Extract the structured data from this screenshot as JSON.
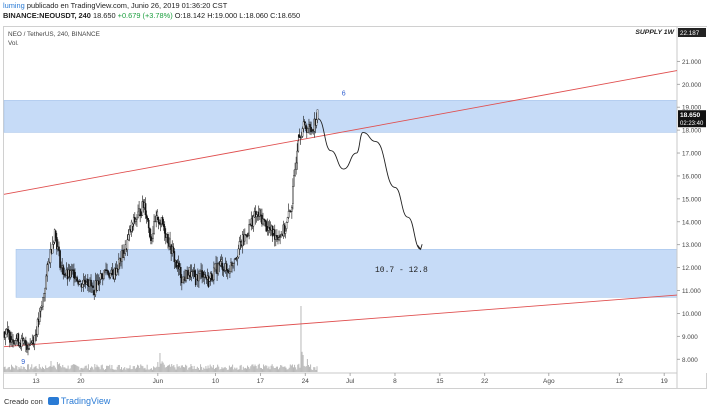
{
  "header": {
    "user": "luming",
    "published": "publicado en TradingView.com, Junio 26, 2019 01:36:20 CST",
    "symbol_line": "BINANCE:NEOUSDT, 240",
    "last_price": "18.650",
    "change": "+0.679 (+3.78%)",
    "ohlc": "O:18.142 H:19.000 L:18.060 C:18.650"
  },
  "legend": {
    "title": "NEO / TetherUS, 240, BINANCE",
    "volume_label": "Vol.",
    "supply_label": "SUPPLY 1W"
  },
  "chart_data": {
    "type": "candlestick",
    "symbol": "NEOUSDT",
    "exchange": "BINANCE",
    "timeframe": "240",
    "y_axis": {
      "ticks": [
        "8.000",
        "9.000",
        "10.000",
        "11.000",
        "12.000",
        "13.000",
        "14.000",
        "15.000",
        "16.000",
        "17.000",
        "18.000",
        "19.000",
        "20.000",
        "21.000"
      ],
      "top_label": "22.187",
      "current_price": "18.650",
      "countdown": "02:23:40",
      "range": [
        7.4,
        22.5
      ]
    },
    "x_axis": {
      "ticks": [
        "13",
        "20",
        "Jun",
        "10",
        "17",
        "24",
        "Jul",
        "8",
        "15",
        "22",
        "Ago",
        "12",
        "19"
      ],
      "tick_dates": [
        "2019-05-13",
        "2019-05-20",
        "2019-06-01",
        "2019-06-10",
        "2019-06-17",
        "2019-06-24",
        "2019-07-01",
        "2019-07-08",
        "2019-07-15",
        "2019-07-22",
        "2019-08-01",
        "2019-08-12",
        "2019-08-19"
      ]
    },
    "price_path": [
      [
        "2019-05-08",
        9.2
      ],
      [
        "2019-05-09",
        9.0
      ],
      [
        "2019-05-10",
        8.9
      ],
      [
        "2019-05-11",
        8.7
      ],
      [
        "2019-05-12",
        8.6
      ],
      [
        "2019-05-13",
        9.1
      ],
      [
        "2019-05-14",
        10.3
      ],
      [
        "2019-05-15",
        12.2
      ],
      [
        "2019-05-16",
        13.6
      ],
      [
        "2019-05-17",
        12.0
      ],
      [
        "2019-05-18",
        11.6
      ],
      [
        "2019-05-19",
        11.8
      ],
      [
        "2019-05-20",
        11.3
      ],
      [
        "2019-05-21",
        11.5
      ],
      [
        "2019-05-22",
        11.0
      ],
      [
        "2019-05-23",
        11.5
      ],
      [
        "2019-05-24",
        11.9
      ],
      [
        "2019-05-25",
        11.6
      ],
      [
        "2019-05-26",
        12.2
      ],
      [
        "2019-05-27",
        12.8
      ],
      [
        "2019-05-28",
        13.8
      ],
      [
        "2019-05-29",
        14.3
      ],
      [
        "2019-05-30",
        14.8
      ],
      [
        "2019-05-31",
        13.3
      ],
      [
        "2019-06-01",
        14.2
      ],
      [
        "2019-06-02",
        13.8
      ],
      [
        "2019-06-03",
        13.0
      ],
      [
        "2019-06-04",
        12.1
      ],
      [
        "2019-06-05",
        11.5
      ],
      [
        "2019-06-06",
        11.8
      ],
      [
        "2019-06-07",
        11.5
      ],
      [
        "2019-06-08",
        11.8
      ],
      [
        "2019-06-09",
        11.4
      ],
      [
        "2019-06-10",
        11.9
      ],
      [
        "2019-06-11",
        12.2
      ],
      [
        "2019-06-12",
        11.8
      ],
      [
        "2019-06-13",
        12.4
      ],
      [
        "2019-06-14",
        13.0
      ],
      [
        "2019-06-15",
        13.5
      ],
      [
        "2019-06-16",
        14.2
      ],
      [
        "2019-06-17",
        14.3
      ],
      [
        "2019-06-18",
        13.8
      ],
      [
        "2019-06-19",
        13.5
      ],
      [
        "2019-06-20",
        13.4
      ],
      [
        "2019-06-21",
        13.7
      ],
      [
        "2019-06-22",
        14.8
      ],
      [
        "2019-06-23",
        17.8
      ],
      [
        "2019-06-24",
        18.2
      ],
      [
        "2019-06-25",
        18.0
      ],
      [
        "2019-06-26",
        18.65
      ]
    ],
    "volume": [
      [
        "2019-05-15",
        0.55
      ],
      [
        "2019-05-16",
        0.5
      ],
      [
        "2019-05-28",
        0.3
      ],
      [
        "2019-06-01",
        0.95
      ],
      [
        "2019-06-16",
        0.3
      ],
      [
        "2019-06-23",
        3.3
      ],
      [
        "2019-06-24",
        0.65
      ]
    ],
    "zones": [
      {
        "price_from": 17.9,
        "price_to": 19.3,
        "from": "2019-05-08",
        "to": "2019-08-21"
      },
      {
        "price_from": 10.7,
        "price_to": 12.8,
        "from": "2019-05-08",
        "to": "2019-08-21"
      }
    ],
    "trendlines": [
      {
        "from": [
          "2019-05-08",
          15.2
        ],
        "to": [
          "2019-08-21",
          20.6
        ]
      },
      {
        "from": [
          "2019-05-08",
          8.55
        ],
        "to": [
          "2019-08-21",
          10.8
        ]
      }
    ],
    "forecast_path": [
      [
        "2019-06-26",
        18.5
      ],
      [
        "2019-06-28",
        17.1
      ],
      [
        "2019-06-30",
        16.3
      ],
      [
        "2019-07-02",
        17.0
      ],
      [
        "2019-07-03",
        17.9
      ],
      [
        "2019-07-05",
        17.5
      ],
      [
        "2019-07-08",
        15.5
      ],
      [
        "2019-07-10",
        14.2
      ],
      [
        "2019-07-12",
        12.8
      ]
    ],
    "annotations": [
      {
        "text": "6",
        "date": "2019-06-30",
        "price": 19.5
      },
      {
        "text": "9",
        "date": "2019-05-11",
        "price": 7.8
      },
      {
        "text": "10.7 - 12.8",
        "date": "2019-07-09",
        "price": 11.8
      }
    ],
    "colors": {
      "zone": "#c6dbf7",
      "trendline": "#e05050",
      "candle": "#111111",
      "volume": "#b8b8b8",
      "annotation": "#3060d0"
    }
  },
  "footer": {
    "created_with": "Creado con",
    "brand": "TradingView"
  }
}
